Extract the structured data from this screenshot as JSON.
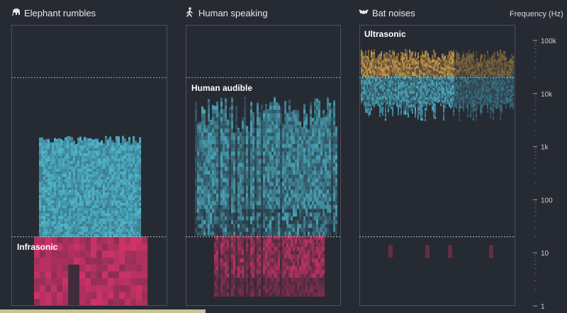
{
  "chart_data": {
    "type": "heatmap",
    "axis": {
      "title": "Frequency (Hz)",
      "scale": "log",
      "range": [
        1,
        100000
      ],
      "ticks": [
        {
          "value": 100000,
          "label": "100k"
        },
        {
          "value": 10000,
          "label": "10k"
        },
        {
          "value": 1000,
          "label": "1k"
        },
        {
          "value": 100,
          "label": "100"
        },
        {
          "value": 10,
          "label": "10"
        },
        {
          "value": 1,
          "label": "1"
        }
      ]
    },
    "thresholds": [
      {
        "value": 20,
        "zone_below": "Infrasonic"
      },
      {
        "value": 20000,
        "zone_above": "Ultrasonic"
      }
    ],
    "colors": {
      "infrasonic": "#d9336b",
      "audible": "#4fb8cf",
      "ultrasonic": "#e0a84a",
      "frame": "#4a505c",
      "background": "#262a33"
    },
    "panels": [
      {
        "title": "Elephant rumbles",
        "icon": "elephant-icon",
        "zone_label": "Infrasonic",
        "zone_label_position": "bottom",
        "freq_range_hz": [
          1,
          2500
        ]
      },
      {
        "title": "Human speaking",
        "icon": "walking-person-icon",
        "zone_label": "Human audible",
        "zone_label_position": "top",
        "freq_range_hz": [
          1,
          9000
        ]
      },
      {
        "title": "Bat noises",
        "icon": "bat-icon",
        "zone_label": "Ultrasonic",
        "zone_label_position": "top",
        "freq_range_hz": [
          10,
          60000
        ]
      }
    ]
  }
}
